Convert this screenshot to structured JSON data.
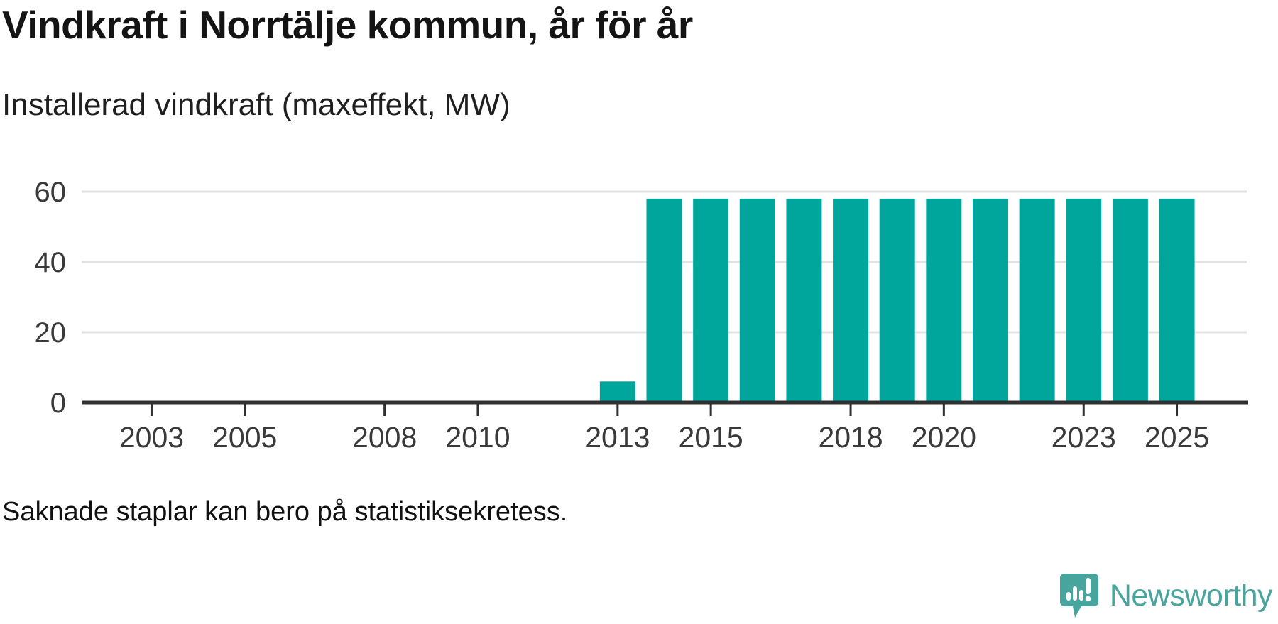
{
  "page": {
    "title": "Vindkraft i Norrtälje kommun, år för år",
    "subtitle": "Installerad vindkraft (maxeffekt, MW)",
    "footnote": "Saknade staplar kan bero på statistiksekretess.",
    "background_color": "#ffffff"
  },
  "branding": {
    "logo_text": "Newsworthy",
    "logo_color": "#47a59d",
    "logo_icon": "newsworthy-speech-bubble-bar-chart-icon"
  },
  "chart_data": {
    "type": "bar",
    "title": "Vindkraft i Norrtälje kommun, år för år",
    "subtitle": "Installerad vindkraft (maxeffekt, MW)",
    "unit": "MW",
    "ylabel": "Installerad vindkraft (maxeffekt, MW)",
    "xlabel": "",
    "years": [
      2013,
      2014,
      2015,
      2016,
      2017,
      2018,
      2019,
      2020,
      2021,
      2022,
      2023,
      2024,
      2025
    ],
    "values": [
      6,
      58,
      58,
      58,
      58,
      58,
      58,
      58,
      58,
      58,
      58,
      58,
      58
    ],
    "x_tick_labels": [
      2003,
      2005,
      2008,
      2010,
      2013,
      2015,
      2018,
      2020,
      2023,
      2025
    ],
    "x_domain": [
      2001.5,
      2026.5
    ],
    "yticks": [
      0,
      20,
      40,
      60
    ],
    "ylim": [
      0,
      62
    ],
    "grid": "horizontal-gridlines-behind-bars",
    "legend": "none",
    "bar_color": "#00a59c",
    "axis_color": "#303030",
    "gridline_color": "#e2e2e2",
    "tick_label_color": "#3a3a3a",
    "footnote": "Saknade staplar kan bero på statistiksekretess."
  }
}
